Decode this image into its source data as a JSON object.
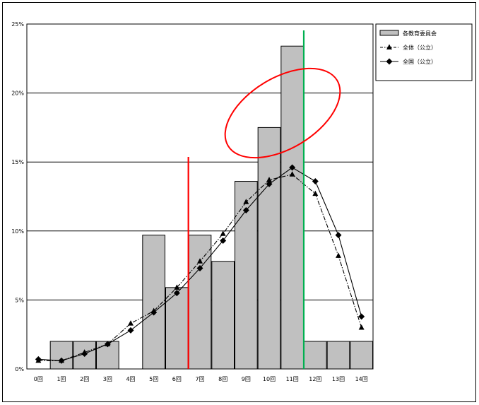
{
  "chart_data": {
    "type": "bar",
    "categories": [
      "0回",
      "1回",
      "2回",
      "3回",
      "4回",
      "5回",
      "6回",
      "7回",
      "8回",
      "9回",
      "10回",
      "11回",
      "12回",
      "13回",
      "14回"
    ],
    "ylim": [
      0,
      25
    ],
    "y_ticks": [
      "0%",
      "5%",
      "10%",
      "15%",
      "20%",
      "25%"
    ],
    "y_tick_values": [
      0,
      5,
      10,
      15,
      20,
      25
    ],
    "grid": true,
    "legend_position": "right-top",
    "series": [
      {
        "name": "各教育委員会",
        "kind": "bar",
        "color": "#c0c0c0",
        "values": [
          0,
          2,
          2,
          2,
          0,
          9.7,
          5.9,
          9.7,
          7.8,
          13.6,
          17.5,
          23.4,
          2,
          2,
          2
        ]
      },
      {
        "name": "全体（公立）",
        "kind": "line-dashdot",
        "marker": "triangle",
        "color": "#000000",
        "values": [
          0.6,
          0.6,
          1.2,
          1.8,
          3.3,
          4.2,
          5.9,
          7.8,
          9.8,
          12.1,
          13.7,
          14.1,
          12.7,
          8.2,
          3.0
        ]
      },
      {
        "name": "全国（公立）",
        "kind": "line",
        "marker": "diamond",
        "color": "#000000",
        "values": [
          0.7,
          0.6,
          1.1,
          1.8,
          2.8,
          4.1,
          5.5,
          7.3,
          9.3,
          11.5,
          13.4,
          14.6,
          13.6,
          9.7,
          3.8
        ]
      }
    ],
    "annotations": [
      {
        "kind": "vertical-line",
        "color": "#ff0000",
        "between_categories": [
          "6回",
          "7回"
        ]
      },
      {
        "kind": "vertical-line",
        "color": "#00b050",
        "between_categories": [
          "11回",
          "12回"
        ]
      },
      {
        "kind": "ellipse",
        "color": "#ff0000",
        "around_categories": [
          "9回",
          "10回",
          "11回"
        ]
      }
    ]
  }
}
